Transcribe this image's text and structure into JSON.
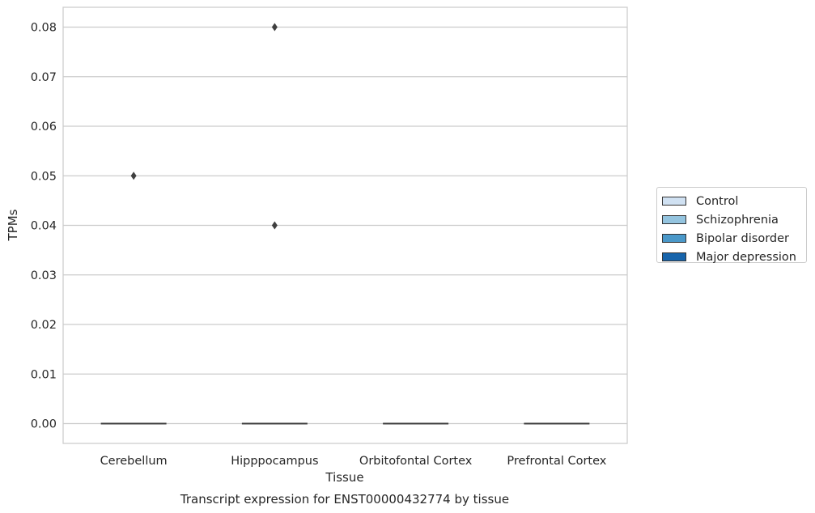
{
  "chart_data": {
    "type": "box",
    "xlabel": "Tissue",
    "ylabel": "TPMs",
    "caption": "Transcript expression for ENST00000432774 by tissue",
    "categories": [
      "Cerebellum",
      "Hipppocampus",
      "Orbitofontal Cortex",
      "Prefrontal Cortex"
    ],
    "yticks": [
      "0.00",
      "0.01",
      "0.02",
      "0.03",
      "0.04",
      "0.05",
      "0.06",
      "0.07",
      "0.08"
    ],
    "ylim": [
      -0.004,
      0.084
    ],
    "grid": true,
    "legend_position": "right",
    "series": [
      {
        "name": "Control",
        "color": "#d0e1f2"
      },
      {
        "name": "Schizophrenia",
        "color": "#94c4df"
      },
      {
        "name": "Bipolar disorder",
        "color": "#4a98c9"
      },
      {
        "name": "Major depression",
        "color": "#1764ab"
      }
    ],
    "boxes": [
      {
        "category": "Cerebellum",
        "median": 0.0,
        "q1": 0.0,
        "q3": 0.0
      },
      {
        "category": "Hipppocampus",
        "median": 0.0,
        "q1": 0.0,
        "q3": 0.0
      },
      {
        "category": "Orbitofontal Cortex",
        "median": 0.0,
        "q1": 0.0,
        "q3": 0.0
      },
      {
        "category": "Prefrontal Cortex",
        "median": 0.0,
        "q1": 0.0,
        "q3": 0.0
      }
    ],
    "outliers": [
      {
        "category": "Cerebellum",
        "value": 0.05
      },
      {
        "category": "Hipppocampus",
        "value": 0.08
      },
      {
        "category": "Hipppocampus",
        "value": 0.04
      }
    ]
  }
}
